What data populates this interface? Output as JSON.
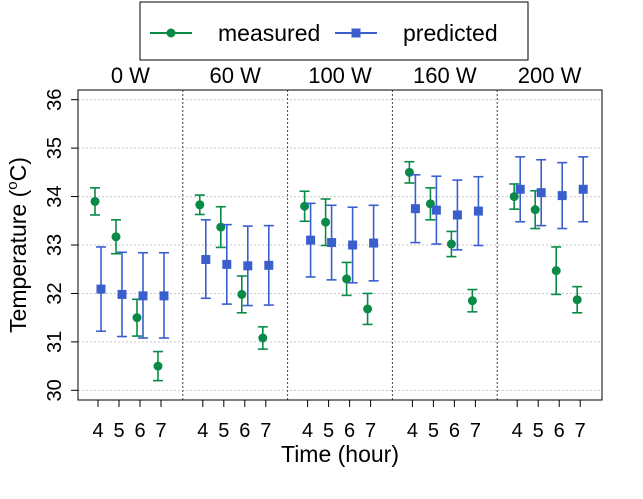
{
  "chart_data": {
    "type": "scatter",
    "xlabel": "Time (hour)",
    "ylabel_main": "Temperature (",
    "ylabel_sup": "o",
    "ylabel_unit": "C)",
    "ylim": [
      29.8,
      36.2
    ],
    "yticks": [
      30,
      31,
      32,
      33,
      34,
      35,
      36
    ],
    "x_ticks": [
      4,
      5,
      6,
      7
    ],
    "grid": true,
    "legend_position": "top",
    "panels": [
      "0 W",
      "60 W",
      "100 W",
      "160 W",
      "200 W"
    ],
    "series": [
      {
        "name": "measured",
        "color": "#0a8a47",
        "marker": "circle",
        "points": [
          {
            "panel": "0 W",
            "x": 4,
            "y": 33.9,
            "lo": 33.62,
            "hi": 34.18
          },
          {
            "panel": "0 W",
            "x": 5,
            "y": 33.17,
            "lo": 32.82,
            "hi": 33.52
          },
          {
            "panel": "0 W",
            "x": 6,
            "y": 31.5,
            "lo": 31.12,
            "hi": 31.88
          },
          {
            "panel": "0 W",
            "x": 7,
            "y": 30.5,
            "lo": 30.2,
            "hi": 30.8
          },
          {
            "panel": "60 W",
            "x": 4,
            "y": 33.83,
            "lo": 33.63,
            "hi": 34.03
          },
          {
            "panel": "60 W",
            "x": 5,
            "y": 33.37,
            "lo": 32.95,
            "hi": 33.79
          },
          {
            "panel": "60 W",
            "x": 6,
            "y": 31.98,
            "lo": 31.6,
            "hi": 32.36
          },
          {
            "panel": "60 W",
            "x": 7,
            "y": 31.08,
            "lo": 30.85,
            "hi": 31.31
          },
          {
            "panel": "100 W",
            "x": 4,
            "y": 33.8,
            "lo": 33.49,
            "hi": 34.11
          },
          {
            "panel": "100 W",
            "x": 5,
            "y": 33.47,
            "lo": 32.99,
            "hi": 33.95
          },
          {
            "panel": "100 W",
            "x": 6,
            "y": 32.3,
            "lo": 31.96,
            "hi": 32.64
          },
          {
            "panel": "100 W",
            "x": 7,
            "y": 31.68,
            "lo": 31.36,
            "hi": 32.0
          },
          {
            "panel": "160 W",
            "x": 4,
            "y": 34.5,
            "lo": 34.28,
            "hi": 34.72
          },
          {
            "panel": "160 W",
            "x": 5,
            "y": 33.85,
            "lo": 33.52,
            "hi": 34.18
          },
          {
            "panel": "160 W",
            "x": 6,
            "y": 33.02,
            "lo": 32.76,
            "hi": 33.28
          },
          {
            "panel": "160 W",
            "x": 7,
            "y": 31.85,
            "lo": 31.62,
            "hi": 32.08
          },
          {
            "panel": "200 W",
            "x": 4,
            "y": 34.0,
            "lo": 33.74,
            "hi": 34.26
          },
          {
            "panel": "200 W",
            "x": 5,
            "y": 33.73,
            "lo": 33.34,
            "hi": 34.12
          },
          {
            "panel": "200 W",
            "x": 6,
            "y": 32.47,
            "lo": 31.98,
            "hi": 32.96
          },
          {
            "panel": "200 W",
            "x": 7,
            "y": 31.87,
            "lo": 31.6,
            "hi": 32.14
          }
        ]
      },
      {
        "name": "predicted",
        "color": "#3a5fcd",
        "marker": "square",
        "points": [
          {
            "panel": "0 W",
            "x": 4,
            "y": 32.09,
            "lo": 31.22,
            "hi": 32.96
          },
          {
            "panel": "0 W",
            "x": 5,
            "y": 31.98,
            "lo": 31.11,
            "hi": 32.85
          },
          {
            "panel": "0 W",
            "x": 6,
            "y": 31.95,
            "lo": 31.08,
            "hi": 32.84
          },
          {
            "panel": "0 W",
            "x": 7,
            "y": 31.95,
            "lo": 31.08,
            "hi": 32.84
          },
          {
            "panel": "60 W",
            "x": 4,
            "y": 32.7,
            "lo": 31.9,
            "hi": 33.52
          },
          {
            "panel": "60 W",
            "x": 5,
            "y": 32.6,
            "lo": 31.78,
            "hi": 33.42
          },
          {
            "panel": "60 W",
            "x": 6,
            "y": 32.57,
            "lo": 31.75,
            "hi": 33.39
          },
          {
            "panel": "60 W",
            "x": 7,
            "y": 32.58,
            "lo": 31.76,
            "hi": 33.4
          },
          {
            "panel": "100 W",
            "x": 4,
            "y": 33.1,
            "lo": 32.34,
            "hi": 33.86
          },
          {
            "panel": "100 W",
            "x": 5,
            "y": 33.05,
            "lo": 32.28,
            "hi": 33.82
          },
          {
            "panel": "100 W",
            "x": 6,
            "y": 33.0,
            "lo": 32.22,
            "hi": 33.78
          },
          {
            "panel": "100 W",
            "x": 7,
            "y": 33.04,
            "lo": 32.26,
            "hi": 33.82
          },
          {
            "panel": "160 W",
            "x": 4,
            "y": 33.75,
            "lo": 33.05,
            "hi": 34.45
          },
          {
            "panel": "160 W",
            "x": 5,
            "y": 33.72,
            "lo": 33.02,
            "hi": 34.42
          },
          {
            "panel": "160 W",
            "x": 6,
            "y": 33.62,
            "lo": 32.9,
            "hi": 34.34
          },
          {
            "panel": "160 W",
            "x": 7,
            "y": 33.7,
            "lo": 32.99,
            "hi": 34.41
          },
          {
            "panel": "200 W",
            "x": 4,
            "y": 34.15,
            "lo": 33.48,
            "hi": 34.82
          },
          {
            "panel": "200 W",
            "x": 5,
            "y": 34.08,
            "lo": 33.4,
            "hi": 34.76
          },
          {
            "panel": "200 W",
            "x": 6,
            "y": 34.02,
            "lo": 33.34,
            "hi": 34.7
          },
          {
            "panel": "200 W",
            "x": 7,
            "y": 34.15,
            "lo": 33.48,
            "hi": 34.82
          }
        ]
      }
    ]
  }
}
